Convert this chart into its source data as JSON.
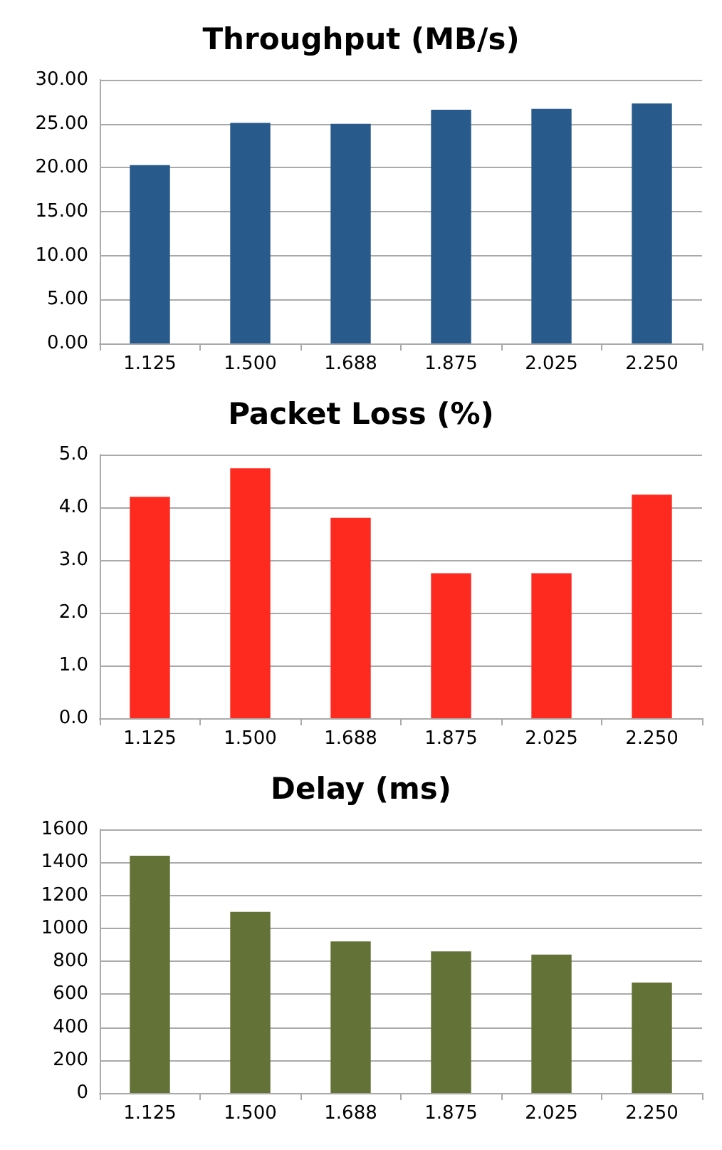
{
  "chart_data": [
    {
      "type": "bar",
      "title": "Throughput (MB/s)",
      "categories": [
        "1.125",
        "1.500",
        "1.688",
        "1.875",
        "2.025",
        "2.250"
      ],
      "values": [
        20.3,
        25.1,
        25.0,
        26.6,
        26.7,
        27.3
      ],
      "color": "#285a8c",
      "ylim": [
        0,
        30
      ],
      "yticks": [
        {
          "value": 0,
          "label": "0.00"
        },
        {
          "value": 5,
          "label": "5.00"
        },
        {
          "value": 10,
          "label": "10.00"
        },
        {
          "value": 15,
          "label": "15.00"
        },
        {
          "value": 20,
          "label": "20.00"
        },
        {
          "value": 25,
          "label": "25.00"
        },
        {
          "value": 30,
          "label": "30.00"
        }
      ],
      "grid": "y"
    },
    {
      "type": "bar",
      "title": "Packet Loss (%)",
      "categories": [
        "1.125",
        "1.500",
        "1.688",
        "1.875",
        "2.025",
        "2.250"
      ],
      "values": [
        4.2,
        4.74,
        3.8,
        2.75,
        2.75,
        4.24
      ],
      "color": "#ff2a1f",
      "ylim": [
        0,
        5
      ],
      "yticks": [
        {
          "value": 0,
          "label": "0.0"
        },
        {
          "value": 1,
          "label": "1.0"
        },
        {
          "value": 2,
          "label": "2.0"
        },
        {
          "value": 3,
          "label": "3.0"
        },
        {
          "value": 4,
          "label": "4.0"
        },
        {
          "value": 5,
          "label": "5.0"
        }
      ],
      "grid": "y"
    },
    {
      "type": "bar",
      "title": "Delay (ms)",
      "categories": [
        "1.125",
        "1.500",
        "1.688",
        "1.875",
        "2.025",
        "2.250"
      ],
      "values": [
        1440,
        1100,
        920,
        860,
        840,
        670
      ],
      "color": "#637236",
      "ylim": [
        0,
        1600
      ],
      "yticks": [
        0,
        200,
        400,
        600,
        800,
        1000,
        1200,
        1400,
        1600
      ],
      "grid": "y"
    }
  ]
}
